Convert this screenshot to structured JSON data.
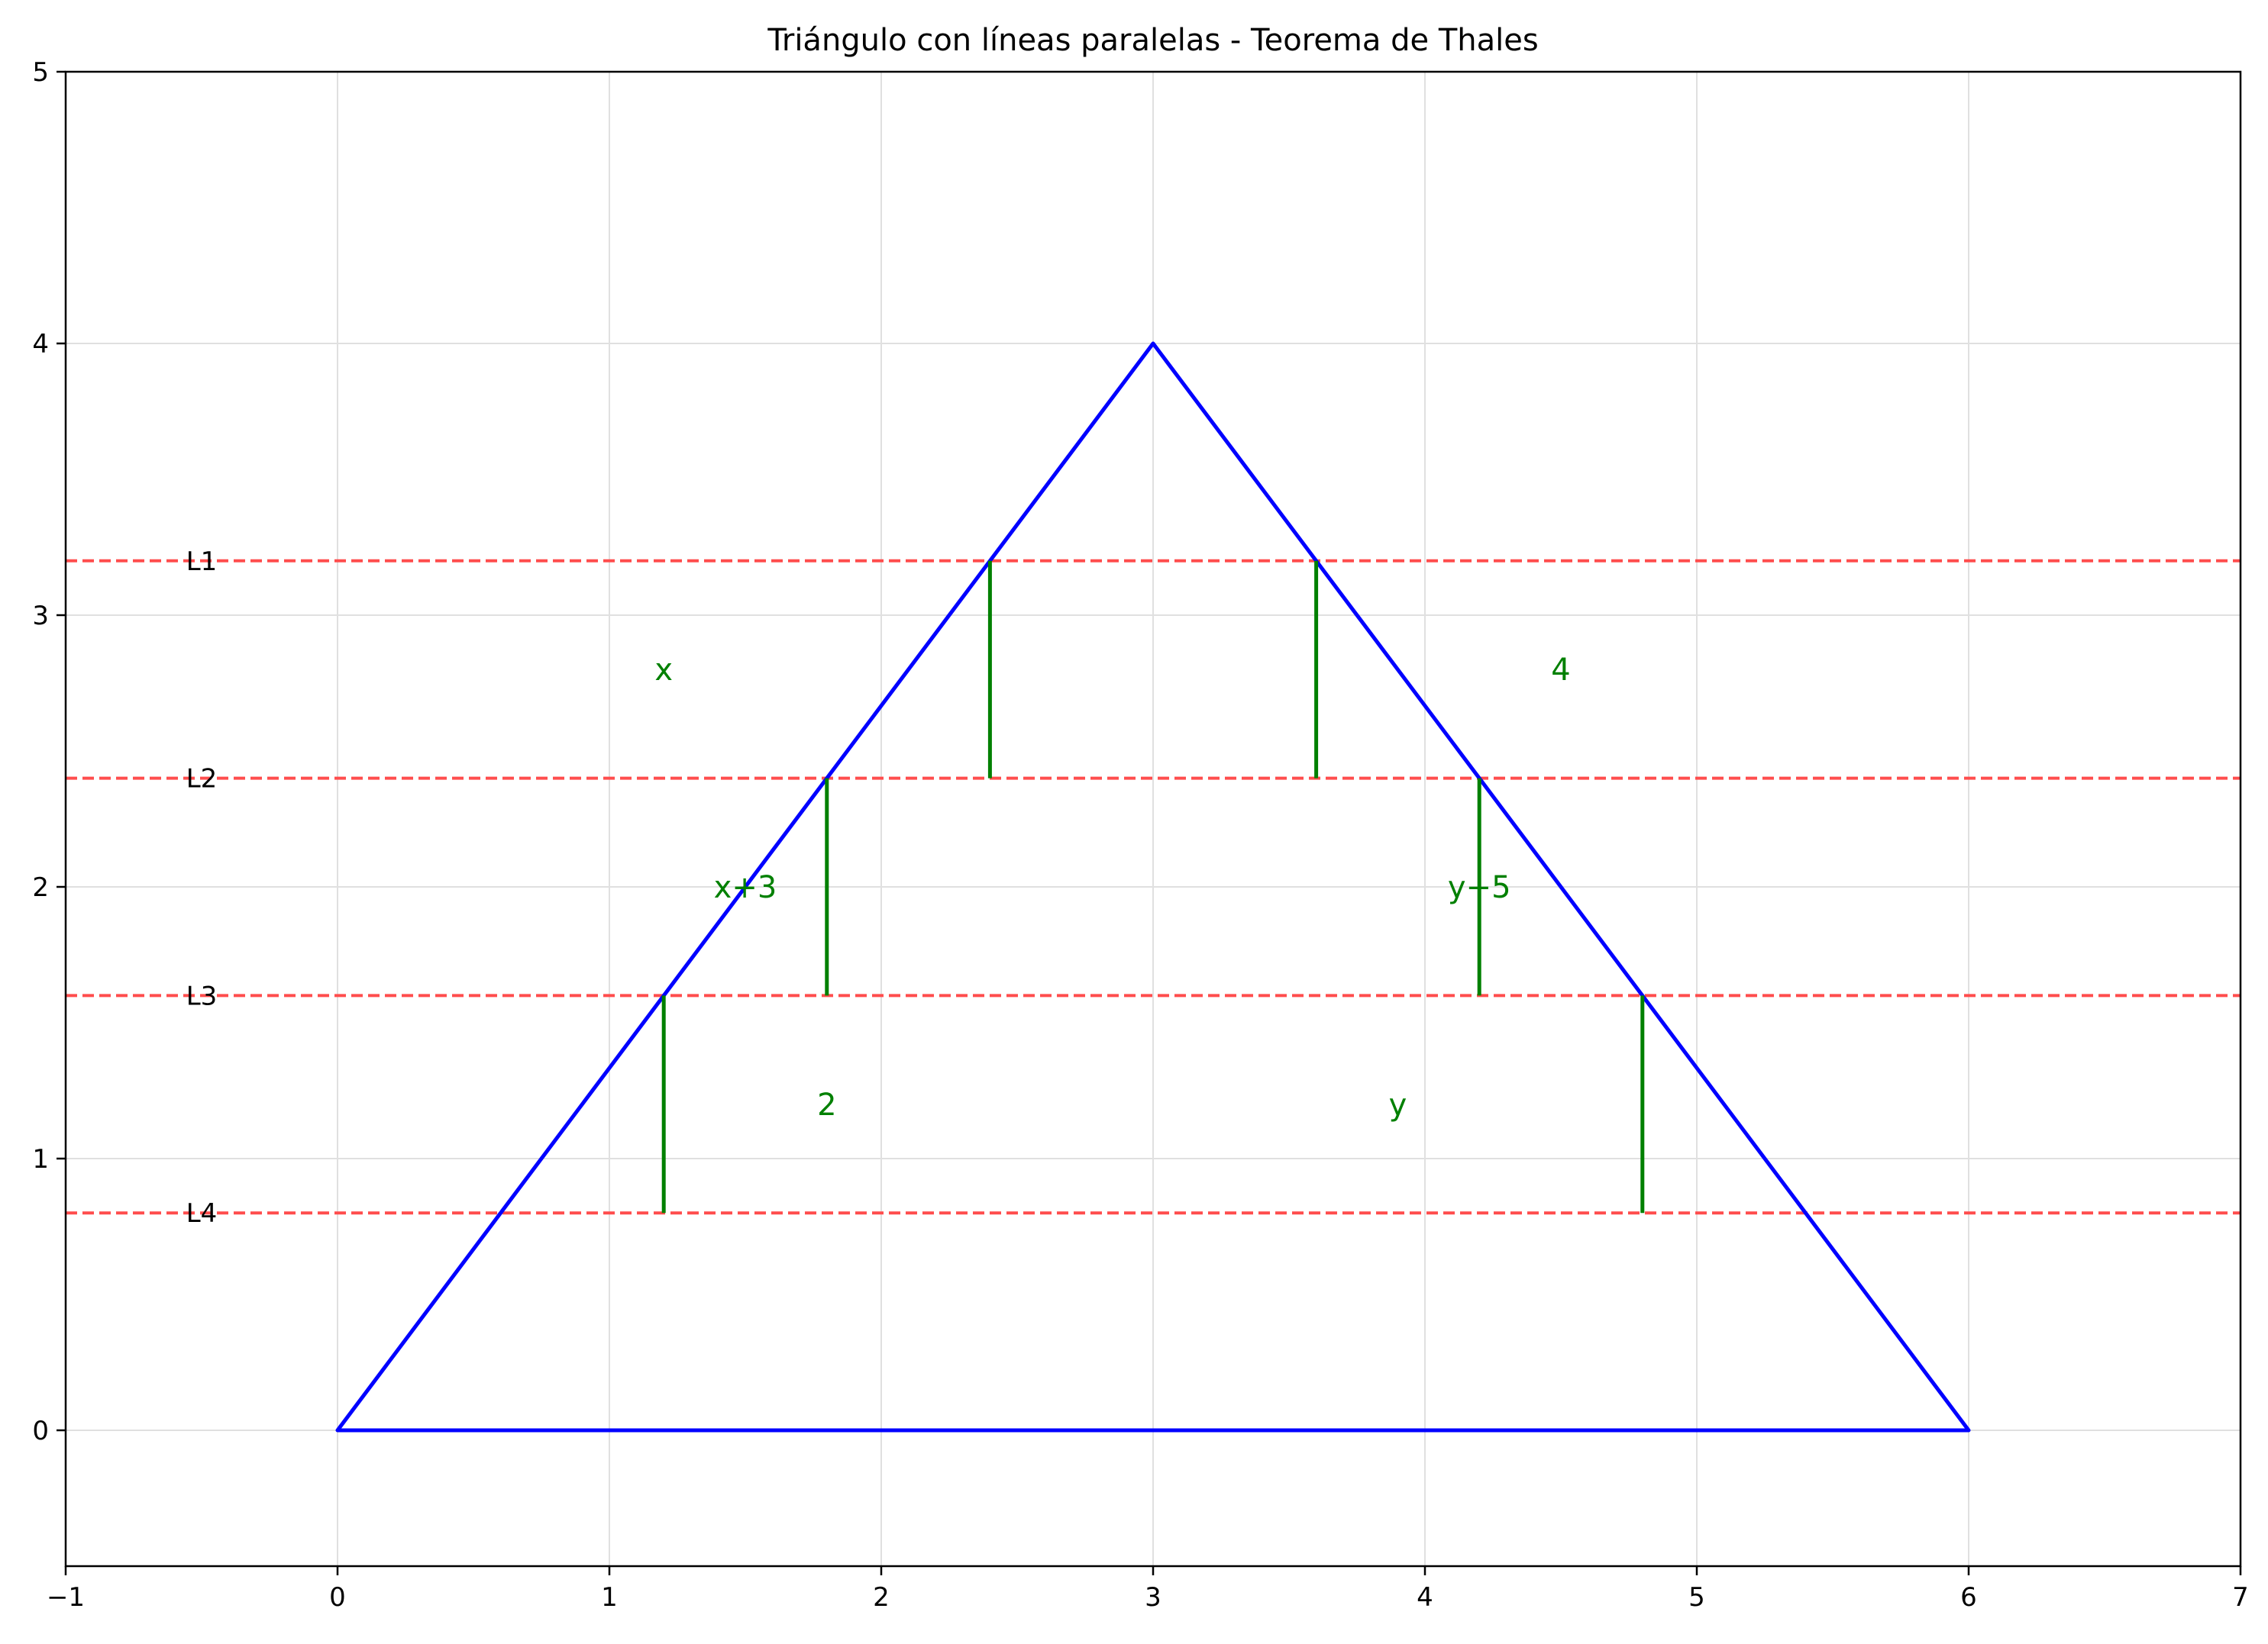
{
  "chart_data": {
    "type": "line",
    "title": "Triángulo con líneas paralelas - Teorema de Thales",
    "xlabel": "",
    "ylabel": "",
    "xlim": [
      -1,
      7
    ],
    "ylim": [
      -0.5,
      5
    ],
    "x_ticks": [
      -1,
      0,
      1,
      2,
      3,
      4,
      5,
      6,
      7
    ],
    "x_tick_labels": [
      "−1",
      "0",
      "1",
      "2",
      "3",
      "4",
      "5",
      "6",
      "7"
    ],
    "y_ticks": [
      0,
      1,
      2,
      3,
      4,
      5
    ],
    "y_tick_labels": [
      "0",
      "1",
      "2",
      "3",
      "4",
      "5"
    ],
    "grid": true,
    "colors": {
      "triangle": "#0000ff",
      "parallel_lines": "#ff4d4d",
      "segments": "#008000",
      "segment_labels": "#008000",
      "grid": "#e0e0e0"
    },
    "triangle": [
      [
        0,
        0
      ],
      [
        3,
        4
      ],
      [
        6,
        0
      ],
      [
        0,
        0
      ]
    ],
    "parallel_lines": [
      {
        "label": "L1",
        "y": 3.2
      },
      {
        "label": "L2",
        "y": 2.4
      },
      {
        "label": "L3",
        "y": 1.6
      },
      {
        "label": "L4",
        "y": 0.8
      }
    ],
    "line_label_x": -0.5,
    "segments": [
      {
        "x": 2.4,
        "y1": 2.4,
        "y2": 3.2
      },
      {
        "x": 1.8,
        "y1": 1.6,
        "y2": 2.4
      },
      {
        "x": 1.2,
        "y1": 0.8,
        "y2": 1.6
      },
      {
        "x": 3.6,
        "y1": 2.4,
        "y2": 3.2
      },
      {
        "x": 4.2,
        "y1": 1.6,
        "y2": 2.4
      },
      {
        "x": 4.8,
        "y1": 0.8,
        "y2": 1.6
      }
    ],
    "segment_labels": [
      {
        "text": "x",
        "x": 1.2,
        "y": 2.8
      },
      {
        "text": "x+3",
        "x": 1.5,
        "y": 2.0
      },
      {
        "text": "2",
        "x": 1.8,
        "y": 1.2
      },
      {
        "text": "4",
        "x": 4.5,
        "y": 2.8
      },
      {
        "text": "y−5",
        "x": 4.2,
        "y": 2.0
      },
      {
        "text": "y",
        "x": 3.9,
        "y": 1.2
      }
    ]
  }
}
